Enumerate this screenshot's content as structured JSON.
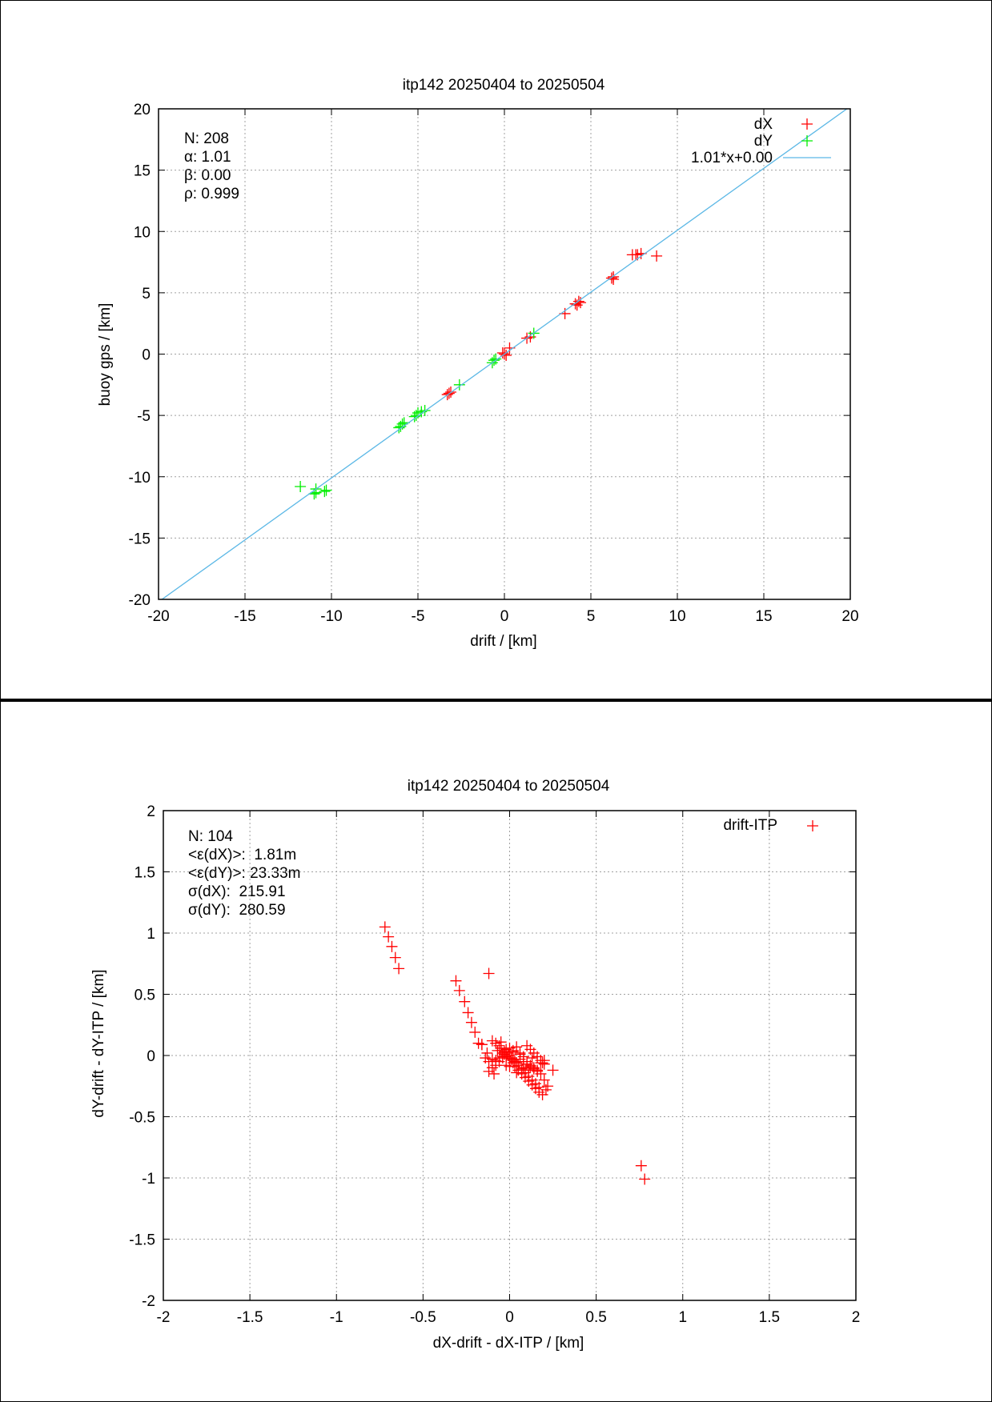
{
  "colors": {
    "dX": "#ff0000",
    "dY": "#00ee00",
    "fit": "#5cb8e6",
    "grid": "#a0a0a0"
  },
  "chart_data": [
    {
      "type": "scatter",
      "title": "itp142 20250404 to 20250504",
      "xlabel": "drift / [km]",
      "ylabel": "buoy gps / [km]",
      "xlim": [
        -20,
        20
      ],
      "ylim": [
        -20,
        20
      ],
      "xticks": [
        -20,
        -15,
        -10,
        -5,
        0,
        5,
        10,
        15,
        20
      ],
      "yticks": [
        -20,
        -15,
        -10,
        -5,
        0,
        5,
        10,
        15,
        20
      ],
      "grid": true,
      "legend_position": "top-right",
      "stats": [
        "N: 208",
        "α: 1.01",
        "β: 0.00",
        "ρ: 0.999"
      ],
      "series": [
        {
          "name": "dX",
          "color": "#ff0000",
          "marker": "+",
          "x": [
            8.8,
            7.9,
            7.7,
            7.4,
            7.6,
            6.3,
            6.3,
            6.2,
            4.4,
            4.3,
            4.1,
            4.2,
            3.5,
            1.5,
            1.3,
            0.3,
            0.0,
            -0.1,
            0.1,
            -3.2,
            -3.1,
            -3.3
          ],
          "y": [
            8.0,
            8.2,
            8.1,
            8.1,
            8.1,
            6.3,
            6.1,
            6.2,
            4.2,
            4.3,
            4.1,
            4.0,
            3.3,
            1.4,
            1.3,
            0.5,
            0.0,
            0.1,
            -0.1,
            -3.2,
            -3.1,
            -3.3
          ]
        },
        {
          "name": "dY",
          "color": "#00ee00",
          "marker": "+",
          "x": [
            1.7,
            -0.5,
            -0.6,
            -0.7,
            -2.6,
            -4.6,
            -4.8,
            -5.0,
            -5.2,
            -5.1,
            -5.8,
            -5.9,
            -6.0,
            -6.1,
            -10.3,
            -10.4,
            -10.9,
            -10.9,
            -11.0,
            -11.8
          ],
          "y": [
            1.7,
            -0.4,
            -0.5,
            -0.7,
            -2.5,
            -4.6,
            -4.7,
            -4.8,
            -5.1,
            -5.0,
            -5.6,
            -5.7,
            -5.9,
            -6.0,
            -11.1,
            -11.2,
            -11.0,
            -11.3,
            -11.4,
            -10.8
          ]
        },
        {
          "name": "1.01*x+0.00",
          "color": "#5cb8e6",
          "type": "line",
          "slope": 1.01,
          "intercept": 0.0
        }
      ]
    },
    {
      "type": "scatter",
      "title": "itp142 20250404 to 20250504",
      "xlabel": "dX-drift - dX-ITP / [km]",
      "ylabel": "dY-drift - dY-ITP / [km]",
      "xlim": [
        -2,
        2
      ],
      "ylim": [
        -2,
        2
      ],
      "xticks": [
        -2,
        -1.5,
        -1,
        -0.5,
        0,
        0.5,
        1,
        1.5,
        2
      ],
      "yticks": [
        -2,
        -1.5,
        -1,
        -0.5,
        0,
        0.5,
        1,
        1.5,
        2
      ],
      "grid": true,
      "legend_position": "top-right",
      "stats": [
        "N: 104",
        "<ε(dX)>:  1.81m",
        "<ε(dY)>: 23.33m",
        "σ(dX):  215.91",
        "σ(dY):  280.59"
      ],
      "series": [
        {
          "name": "drift-ITP",
          "color": "#ff0000",
          "marker": "+",
          "x": [
            -0.72,
            -0.7,
            -0.68,
            -0.66,
            -0.64,
            -0.31,
            -0.29,
            -0.26,
            -0.24,
            -0.22,
            -0.2,
            -0.18,
            -0.16,
            -0.13,
            -0.12,
            -0.1,
            -0.08,
            -0.06,
            -0.05,
            -0.04,
            -0.02,
            0.0,
            0.02,
            0.04,
            0.06,
            0.08,
            0.1,
            0.12,
            0.14,
            0.16,
            0.18,
            0.2,
            0.22,
            0.25,
            -0.14,
            -0.12,
            -0.1,
            -0.08,
            -0.06,
            -0.04,
            -0.02,
            0.0,
            0.02,
            0.04,
            0.06,
            0.08,
            0.1,
            0.12,
            0.14,
            0.16,
            0.18,
            0.2,
            -0.1,
            -0.08,
            -0.06,
            -0.04,
            -0.03,
            -0.02,
            -0.01,
            0.0,
            0.01,
            0.02,
            0.03,
            0.05,
            0.07,
            0.09,
            0.11,
            0.13,
            0.15,
            0.17,
            0.19,
            0.21,
            -0.07,
            -0.05,
            -0.03,
            -0.01,
            0.01,
            0.03,
            0.05,
            0.07,
            0.09,
            0.11,
            0.13,
            0.15,
            0.17,
            0.1,
            0.12,
            0.14,
            0.16,
            0.18,
            0.2,
            -0.12,
            -0.09,
            0.0,
            0.06,
            0.13,
            0.19,
            0.02,
            -0.05,
            0.08,
            0.11,
            0.76,
            0.78,
            -0.16,
            -0.02,
            0.04
          ],
          "y": [
            1.05,
            0.97,
            0.89,
            0.8,
            0.71,
            0.61,
            0.53,
            0.44,
            0.35,
            0.27,
            0.19,
            0.1,
            0.09,
            0.02,
            0.67,
            0.12,
            0.1,
            0.08,
            0.04,
            0.02,
            0.05,
            0.06,
            0.03,
            0.07,
            0.02,
            -0.01,
            -0.05,
            -0.08,
            -0.1,
            -0.12,
            -0.15,
            -0.2,
            -0.25,
            -0.12,
            -0.02,
            -0.05,
            -0.03,
            -0.04,
            -0.02,
            -0.01,
            0.0,
            -0.02,
            -0.04,
            -0.06,
            -0.03,
            -0.05,
            -0.07,
            -0.09,
            -0.11,
            -0.13,
            -0.06,
            -0.04,
            -0.1,
            -0.08,
            -0.05,
            -0.02,
            0.01,
            -0.01,
            0.02,
            0.0,
            -0.03,
            -0.06,
            -0.09,
            -0.12,
            -0.15,
            -0.18,
            -0.21,
            -0.24,
            -0.27,
            -0.3,
            -0.32,
            -0.28,
            0.04,
            0.06,
            0.03,
            0.0,
            -0.02,
            -0.05,
            -0.08,
            -0.11,
            -0.14,
            -0.17,
            -0.2,
            -0.23,
            -0.26,
            0.08,
            0.05,
            0.02,
            -0.01,
            -0.04,
            -0.07,
            -0.13,
            -0.15,
            -0.09,
            0.01,
            -0.02,
            -0.06,
            0.04,
            0.11,
            -0.1,
            -0.12,
            -0.9,
            -1.01,
            0.09,
            -0.08,
            -0.14
          ]
        }
      ]
    }
  ]
}
